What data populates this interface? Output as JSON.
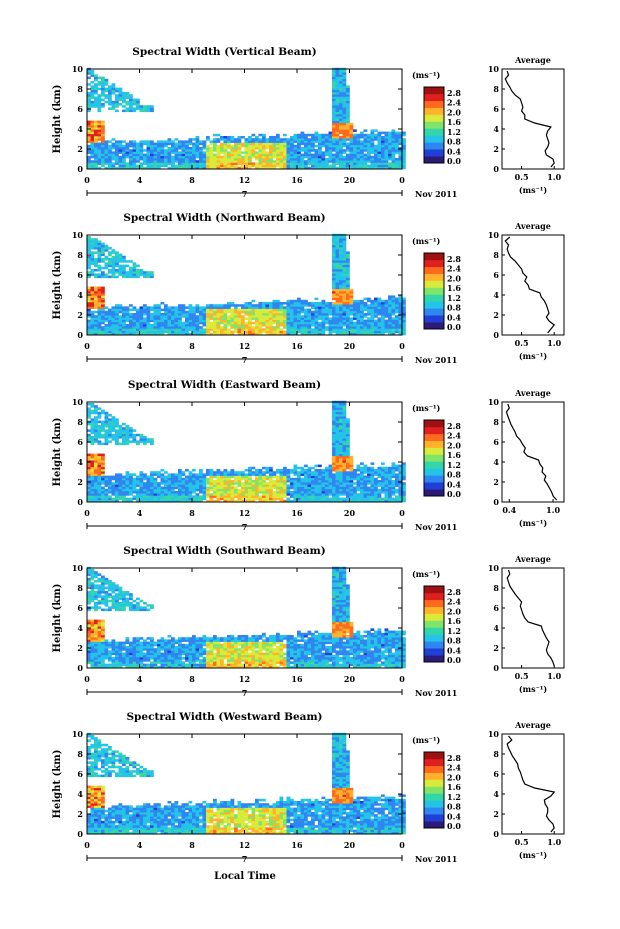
{
  "common": {
    "ylabel": "Height (km)",
    "y_ticks": [
      "0",
      "2",
      "4",
      "6",
      "8",
      "10"
    ],
    "ylim": [
      0,
      10
    ],
    "x_ticks": [
      "0",
      "4",
      "8",
      "12",
      "16",
      "20",
      "0"
    ],
    "xlim": [
      0,
      24
    ],
    "date_marker": "7",
    "date_label": "Nov 2011",
    "xlabel": "Local Time",
    "colorbar_unit": "(ms⁻¹)",
    "colorbar_ticks": [
      "0.0",
      "0.4",
      "0.8",
      "1.2",
      "1.6",
      "2.0",
      "2.4",
      "2.8"
    ],
    "colorbar_range": [
      0,
      2.8
    ],
    "colormap": [
      "#2b1a7a",
      "#1f3fd6",
      "#2f86f0",
      "#24c3e8",
      "#33d6a8",
      "#7fe46a",
      "#d8ea3a",
      "#ffb22a",
      "#ff6a1e",
      "#e01f1f",
      "#a01010"
    ],
    "avg_title": "Average",
    "avg_xlabel": "(ms⁻¹)",
    "avg_y_ticks": [
      "0",
      "2",
      "4",
      "6",
      "8",
      "10"
    ]
  },
  "chart_data": [
    {
      "type": "heatmap",
      "title": "Spectral Width (Vertical Beam)",
      "avg_x_ticks": [
        "0.5",
        "1.0"
      ],
      "avg_xlim": [
        0.2,
        1.15
      ],
      "average_profile": {
        "height": [
          0.2,
          0.6,
          1.0,
          1.4,
          1.8,
          2.2,
          2.6,
          3.0,
          3.4,
          3.8,
          4.2,
          4.6,
          5.0,
          5.4,
          5.8,
          6.2,
          6.6,
          7.0,
          7.4,
          7.8,
          8.2,
          8.6,
          9.0,
          9.4,
          9.8
        ],
        "value": [
          0.95,
          1.0,
          0.98,
          0.88,
          0.86,
          0.9,
          0.92,
          0.9,
          0.88,
          0.9,
          0.95,
          0.7,
          0.55,
          0.55,
          0.5,
          0.52,
          0.5,
          0.48,
          0.4,
          0.35,
          0.32,
          0.28,
          0.25,
          0.3,
          0.28
        ]
      }
    },
    {
      "type": "heatmap",
      "title": "Spectral Width (Northward Beam)",
      "avg_x_ticks": [
        "0.5",
        "1.0"
      ],
      "avg_xlim": [
        0.2,
        1.15
      ],
      "average_profile": {
        "height": [
          0.2,
          0.6,
          1.0,
          1.4,
          1.8,
          2.2,
          2.6,
          3.0,
          3.4,
          3.8,
          4.2,
          4.6,
          5.0,
          5.4,
          5.8,
          6.2,
          6.6,
          7.0,
          7.4,
          7.8,
          8.2,
          8.6,
          9.0,
          9.4,
          9.8
        ],
        "value": [
          0.9,
          0.95,
          1.0,
          0.92,
          0.88,
          0.92,
          0.9,
          0.88,
          0.85,
          0.8,
          0.78,
          0.62,
          0.6,
          0.55,
          0.58,
          0.52,
          0.5,
          0.45,
          0.4,
          0.33,
          0.3,
          0.28,
          0.3,
          0.25,
          0.32
        ]
      }
    },
    {
      "type": "heatmap",
      "title": "Spectral Width (Eastward Beam)",
      "avg_x_ticks": [
        "0.4",
        "1.0"
      ],
      "avg_xlim": [
        0.3,
        1.15
      ],
      "average_profile": {
        "height": [
          0.2,
          0.6,
          1.0,
          1.4,
          1.8,
          2.2,
          2.6,
          3.0,
          3.4,
          3.8,
          4.2,
          4.6,
          5.0,
          5.4,
          5.8,
          6.2,
          6.6,
          7.0,
          7.4,
          7.8,
          8.2,
          8.6,
          9.0,
          9.4,
          9.8
        ],
        "value": [
          1.05,
          1.0,
          0.98,
          0.95,
          0.92,
          0.88,
          0.9,
          0.85,
          0.86,
          0.82,
          0.8,
          0.65,
          0.6,
          0.62,
          0.58,
          0.55,
          0.5,
          0.48,
          0.45,
          0.42,
          0.4,
          0.38,
          0.36,
          0.4,
          0.38
        ]
      }
    },
    {
      "type": "heatmap",
      "title": "Spectral Width (Southward Beam)",
      "avg_x_ticks": [
        "0.5",
        "1.0"
      ],
      "avg_xlim": [
        0.2,
        1.15
      ],
      "average_profile": {
        "height": [
          0.2,
          0.6,
          1.0,
          1.4,
          1.8,
          2.2,
          2.6,
          3.0,
          3.4,
          3.8,
          4.2,
          4.6,
          5.0,
          5.4,
          5.8,
          6.2,
          6.6,
          7.0,
          7.4,
          7.8,
          8.2,
          8.6,
          9.0,
          9.4,
          9.8
        ],
        "value": [
          1.0,
          0.98,
          0.95,
          0.9,
          0.88,
          0.9,
          0.92,
          0.88,
          0.85,
          0.82,
          0.8,
          0.6,
          0.55,
          0.52,
          0.5,
          0.48,
          0.5,
          0.45,
          0.4,
          0.36,
          0.32,
          0.3,
          0.28,
          0.32,
          0.3
        ]
      }
    },
    {
      "type": "heatmap",
      "title": "Spectral Width (Westward Beam)",
      "avg_x_ticks": [
        "0.5",
        "1.0"
      ],
      "avg_xlim": [
        0.2,
        1.15
      ],
      "average_profile": {
        "height": [
          0.2,
          0.6,
          1.0,
          1.4,
          1.8,
          2.2,
          2.6,
          3.0,
          3.4,
          3.8,
          4.2,
          4.6,
          5.0,
          5.4,
          5.8,
          6.2,
          6.6,
          7.0,
          7.4,
          7.8,
          8.2,
          8.6,
          9.0,
          9.4,
          9.8
        ],
        "value": [
          0.95,
          1.0,
          0.98,
          0.92,
          0.88,
          0.9,
          0.9,
          0.86,
          0.85,
          0.95,
          1.0,
          0.7,
          0.55,
          0.52,
          0.5,
          0.48,
          0.45,
          0.44,
          0.4,
          0.36,
          0.33,
          0.3,
          0.28,
          0.35,
          0.3
        ]
      }
    }
  ]
}
